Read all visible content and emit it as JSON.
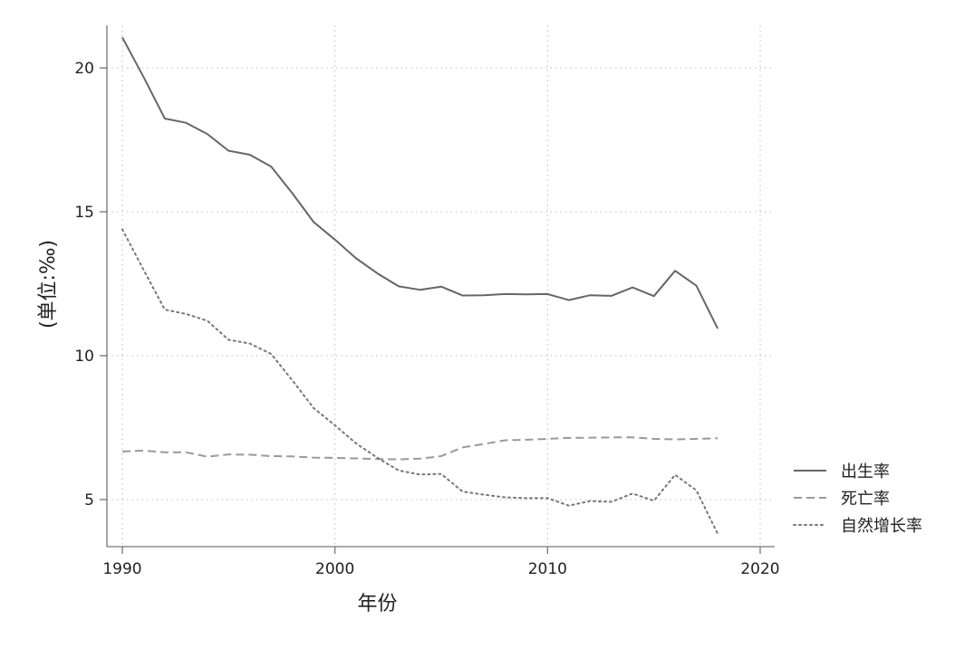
{
  "chart_data": {
    "type": "line",
    "xlabel": "年份",
    "ylabel": "(单位:‰)",
    "xlim": [
      1990,
      2020
    ],
    "ylim": [
      3.3,
      21.5
    ],
    "xticks": [
      1990,
      2000,
      2010,
      2020
    ],
    "yticks": [
      5,
      10,
      15,
      20
    ],
    "x_tick_labels": [
      "1990",
      "2000",
      "2010",
      "2020"
    ],
    "y_tick_labels": [
      "5",
      "10",
      "15",
      "20"
    ],
    "grid": true,
    "legend_position": "right",
    "x": [
      1990,
      1991,
      1992,
      1993,
      1994,
      1995,
      1996,
      1997,
      1998,
      1999,
      2000,
      2001,
      2002,
      2003,
      2004,
      2005,
      2006,
      2007,
      2008,
      2009,
      2010,
      2011,
      2012,
      2013,
      2014,
      2015,
      2016,
      2017,
      2018
    ],
    "series": [
      {
        "name": "出生率",
        "style": "solid",
        "color": "#666666",
        "values": [
          21.06,
          19.68,
          18.24,
          18.09,
          17.7,
          17.12,
          16.98,
          16.57,
          15.64,
          14.64,
          14.03,
          13.38,
          12.86,
          12.41,
          12.29,
          12.4,
          12.09,
          12.1,
          12.14,
          12.13,
          12.14,
          11.93,
          12.1,
          12.08,
          12.37,
          12.07,
          12.95,
          12.43,
          10.94
        ]
      },
      {
        "name": "死亡率",
        "style": "dashed",
        "color": "#999999",
        "values": [
          6.67,
          6.7,
          6.64,
          6.64,
          6.49,
          6.57,
          6.56,
          6.51,
          6.5,
          6.46,
          6.45,
          6.43,
          6.41,
          6.4,
          6.42,
          6.51,
          6.81,
          6.93,
          7.06,
          7.08,
          7.11,
          7.14,
          7.15,
          7.16,
          7.16,
          7.11,
          7.09,
          7.11,
          7.13
        ]
      },
      {
        "name": "自然增长率",
        "style": "dotted",
        "color": "#777777",
        "values": [
          14.39,
          12.98,
          11.6,
          11.45,
          11.21,
          10.55,
          10.42,
          10.06,
          9.14,
          8.18,
          7.58,
          6.95,
          6.45,
          6.01,
          5.87,
          5.89,
          5.28,
          5.17,
          5.08,
          5.05,
          5.05,
          4.79,
          4.95,
          4.92,
          5.21,
          4.96,
          5.86,
          5.32,
          3.81
        ]
      }
    ]
  }
}
